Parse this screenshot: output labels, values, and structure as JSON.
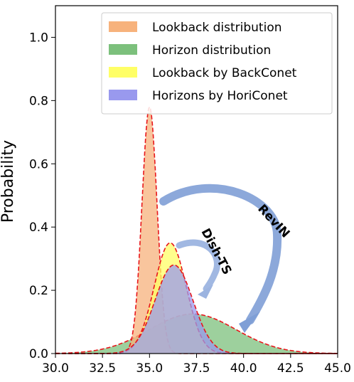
{
  "chart_data": {
    "type": "area",
    "xlabel": "",
    "ylabel": "Probability",
    "xlim": [
      30.0,
      45.0
    ],
    "ylim": [
      0.0,
      1.1
    ],
    "xticks": [
      "30.0",
      "32.5",
      "35.0",
      "37.5",
      "40.0",
      "42.5",
      "45.0"
    ],
    "yticks": [
      "0.0",
      "0.2",
      "0.4",
      "0.6",
      "0.8",
      "1.0"
    ],
    "grid": false,
    "legend_position": "top-right",
    "series": [
      {
        "name": "Lookback distribution",
        "kind": "gaussian",
        "mean": 35.0,
        "peak": 0.78,
        "sigma": 0.4,
        "color": "#F7B27C"
      },
      {
        "name": "Horizon distribution",
        "kind": "gaussian",
        "mean": 37.3,
        "peak": 0.125,
        "sigma": 2.3,
        "color": "#7CC07C"
      },
      {
        "name": "Lookback by BackConet",
        "kind": "gaussian",
        "mean": 36.1,
        "peak": 0.35,
        "sigma": 0.85,
        "color": "#FFFF66"
      },
      {
        "name": "Horizons by HoriConet",
        "kind": "gaussian",
        "mean": 36.3,
        "peak": 0.28,
        "sigma": 1.0,
        "color": "#9999EE"
      }
    ],
    "annotations": [
      {
        "text": "RevIN",
        "type": "arrow",
        "color": "#7F9FD6"
      },
      {
        "text": "Dish-TS",
        "type": "arrow",
        "color": "#9CB4E0"
      }
    ],
    "outline_color": "#E8161B"
  }
}
